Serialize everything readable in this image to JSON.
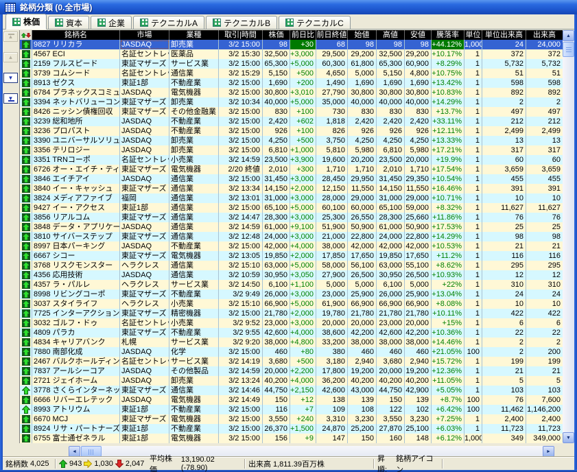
{
  "window": {
    "title": "銘柄分類 (0.全市場)",
    "app_icon": "spreadsheet-grid-icon"
  },
  "tabs": [
    {
      "label": "株価",
      "icon": "table-grid-icon",
      "active": true
    },
    {
      "label": "資本",
      "icon": "table-grid-icon",
      "active": false
    },
    {
      "label": "企業",
      "icon": "table-grid-icon",
      "active": false
    },
    {
      "label": "テクニカルA",
      "icon": "table-grid-icon",
      "active": false
    },
    {
      "label": "テクニカルB",
      "icon": "table-grid-icon",
      "active": false
    },
    {
      "label": "テクニカルC",
      "icon": "table-grid-icon",
      "active": false
    }
  ],
  "sidebar": {
    "buttons": [
      {
        "name": "scroll-to-top-button",
        "enabled": false
      },
      {
        "name": "scroll-up-button",
        "enabled": false
      },
      {
        "name": "scroll-down-button",
        "enabled": true
      },
      {
        "name": "scroll-to-bottom-button",
        "enabled": true
      }
    ]
  },
  "table": {
    "header_icon": "sort-up-down-icon",
    "columns": [
      {
        "key": "name",
        "label": "銘柄名"
      },
      {
        "key": "market",
        "label": "市場"
      },
      {
        "key": "industry",
        "label": "業種"
      },
      {
        "key": "time",
        "label": "取引|時間"
      },
      {
        "key": "price",
        "label": "株価"
      },
      {
        "key": "change",
        "label": "前日比"
      },
      {
        "key": "prev_close",
        "label": "前日終値"
      },
      {
        "key": "open",
        "label": "始値"
      },
      {
        "key": "high",
        "label": "高値"
      },
      {
        "key": "low",
        "label": "安値"
      },
      {
        "key": "pct",
        "label": "騰落率"
      },
      {
        "key": "unit",
        "label": "単位"
      },
      {
        "key": "unit_volume",
        "label": "単位出来高"
      },
      {
        "key": "volume",
        "label": "出来高"
      }
    ],
    "selected_row": 0,
    "rows": [
      [
        "up-tile",
        "9827 リリカラ",
        "JASDAQ",
        "卸売業",
        "3/2 15:00",
        "98",
        "+30",
        "68",
        "98",
        "98",
        "98",
        "+44.12%",
        "1,000",
        "24",
        "24,000"
      ],
      [
        "up-tile",
        "4567 ECI",
        "名証セントレック",
        "医薬品",
        "3/2 15:30",
        "32,500",
        "+3,000",
        "29,500",
        "29,200",
        "32,500",
        "29,200",
        "+10.17%",
        "1",
        "372",
        "372"
      ],
      [
        "up-tile",
        "2159 フルスピード",
        "東証マザーズ",
        "サービス業",
        "3/2 15:00",
        "65,300",
        "+5,000",
        "60,300",
        "61,800",
        "65,300",
        "60,900",
        "+8.29%",
        "1",
        "5,732",
        "5,732"
      ],
      [
        "up-tile",
        "3739 コムシード",
        "名証セントレック",
        "通信業",
        "3/2 15:29",
        "5,150",
        "+500",
        "4,650",
        "5,000",
        "5,150",
        "4,800",
        "+10.75%",
        "1",
        "51",
        "51"
      ],
      [
        "up-tile",
        "8913 ゼクス",
        "東証1部",
        "不動産業",
        "3/2 15:00",
        "1,690",
        "+200",
        "1,490",
        "1,690",
        "1,690",
        "1,690",
        "+13.42%",
        "1",
        "598",
        "598"
      ],
      [
        "up-tile",
        "6784 プラネックスコミュニ",
        "JASDAQ",
        "電気機器",
        "3/2 15:00",
        "30,800",
        "+3,010",
        "27,790",
        "30,800",
        "30,800",
        "30,800",
        "+10.83%",
        "1",
        "892",
        "892"
      ],
      [
        "up-tile",
        "3394 ネットバリューコンポ",
        "東証マザーズ",
        "卸売業",
        "3/2 10:34",
        "40,000",
        "+5,000",
        "35,000",
        "40,000",
        "40,000",
        "40,000",
        "+14.29%",
        "1",
        "2",
        "2"
      ],
      [
        "up-tile",
        "8426 ニッシン債権回収",
        "東証マザーズ",
        "その他金融業",
        "3/2 15:00",
        "830",
        "+100",
        "730",
        "830",
        "830",
        "830",
        "+13.7%",
        "1",
        "497",
        "497"
      ],
      [
        "up-tile",
        "3239 総和地所",
        "JASDAQ",
        "不動産業",
        "3/2 15:00",
        "2,420",
        "+602",
        "1,818",
        "2,420",
        "2,420",
        "2,420",
        "+33.11%",
        "1",
        "212",
        "212"
      ],
      [
        "up-tile",
        "3236 プロパスト",
        "JASDAQ",
        "不動産業",
        "3/2 15:00",
        "926",
        "+100",
        "826",
        "926",
        "926",
        "926",
        "+12.11%",
        "1",
        "2,499",
        "2,499"
      ],
      [
        "up-tile",
        "3390 ユニバーサルソリュー",
        "JASDAQ",
        "卸売業",
        "3/2 15:00",
        "4,250",
        "+500",
        "3,750",
        "4,250",
        "4,250",
        "4,250",
        "+13.33%",
        "1",
        "13",
        "13"
      ],
      [
        "up-tile",
        "3356 テリロジー",
        "JASDAQ",
        "卸売業",
        "3/2 15:00",
        "6,810",
        "+1,000",
        "5,810",
        "5,980",
        "6,810",
        "5,980",
        "+17.21%",
        "1",
        "317",
        "317"
      ],
      [
        "up-tile",
        "3351 TRNコーポ",
        "名証セントレック",
        "小売業",
        "3/2 14:59",
        "23,500",
        "+3,900",
        "19,600",
        "20,200",
        "23,500",
        "20,000",
        "+19.9%",
        "1",
        "60",
        "60"
      ],
      [
        "up-tile",
        "6726 オー・エイチ・ティー",
        "東証マザーズ",
        "電気機器",
        "2/20 終値",
        "2,010",
        "+300",
        "1,710",
        "1,710",
        "2,010",
        "1,710",
        "+17.54%",
        "1",
        "3,659",
        "3,659"
      ],
      [
        "up-tile",
        "3846 エイチアイ",
        "JASDAQ",
        "通信業",
        "3/2 15:00",
        "31,450",
        "+3,000",
        "28,450",
        "29,950",
        "31,450",
        "29,350",
        "+10.54%",
        "1",
        "455",
        "455"
      ],
      [
        "up-tile",
        "3840 イー・キャッシュ",
        "東証マザーズ",
        "通信業",
        "3/2 13:34",
        "14,150",
        "+2,000",
        "12,150",
        "11,550",
        "14,150",
        "11,550",
        "+16.46%",
        "1",
        "391",
        "391"
      ],
      [
        "up-tile",
        "3824 メディアファイブ",
        "福岡",
        "通信業",
        "3/2 13:01",
        "31,000",
        "+3,000",
        "28,000",
        "29,000",
        "31,000",
        "29,000",
        "+10.71%",
        "1",
        "10",
        "10"
      ],
      [
        "up-tile",
        "9427 イー・アクセス",
        "東証1部",
        "通信業",
        "3/2 15:00",
        "65,100",
        "+5,000",
        "60,100",
        "60,000",
        "65,100",
        "59,000",
        "+8.32%",
        "1",
        "11,627",
        "11,627"
      ],
      [
        "up-tile",
        "3856 リアルコム",
        "東証マザーズ",
        "通信業",
        "3/2 14:47",
        "28,300",
        "+3,000",
        "25,300",
        "26,550",
        "28,300",
        "25,660",
        "+11.86%",
        "1",
        "76",
        "76"
      ],
      [
        "up-tile",
        "3848 データ・アプリケーシ",
        "JASDAQ",
        "通信業",
        "3/2 14:59",
        "61,000",
        "+9,100",
        "51,900",
        "50,900",
        "61,000",
        "50,900",
        "+17.53%",
        "1",
        "25",
        "25"
      ],
      [
        "up-tile",
        "3810 サイバーステップ",
        "東証マザーズ",
        "通信業",
        "3/2 12:48",
        "24,000",
        "+3,000",
        "21,000",
        "22,800",
        "24,000",
        "22,800",
        "+14.29%",
        "1",
        "98",
        "98"
      ],
      [
        "up-tile",
        "8997 日本パーキング",
        "JASDAQ",
        "不動産業",
        "3/2 15:00",
        "42,000",
        "+4,000",
        "38,000",
        "42,000",
        "42,000",
        "42,000",
        "+10.53%",
        "1",
        "21",
        "21"
      ],
      [
        "up-tile",
        "6667 シコー",
        "東証マザーズ",
        "電気機器",
        "3/2 13:05",
        "19,850",
        "+2,000",
        "17,850",
        "17,650",
        "19,850",
        "17,650",
        "+11.2%",
        "1",
        "116",
        "116"
      ],
      [
        "up-tile",
        "3768 リスクモンスター",
        "ヘラクレス",
        "通信業",
        "3/2 15:10",
        "63,000",
        "+5,000",
        "58,000",
        "56,100",
        "63,000",
        "55,100",
        "+8.62%",
        "1",
        "295",
        "295"
      ],
      [
        "up-tile",
        "4356 応用技術",
        "JASDAQ",
        "通信業",
        "3/2 10:59",
        "30,950",
        "+3,050",
        "27,900",
        "26,500",
        "30,950",
        "26,500",
        "+10.93%",
        "1",
        "12",
        "12"
      ],
      [
        "up-tile",
        "4357 ラ・パルレ",
        "ヘラクレス",
        "サービス業",
        "3/2 14:50",
        "6,100",
        "+1,100",
        "5,000",
        "5,000",
        "6,100",
        "5,000",
        "+22%",
        "1",
        "310",
        "310"
      ],
      [
        "up-tile",
        "8998 リビングコーポ",
        "東証マザーズ",
        "不動産業",
        "3/2 9:49",
        "26,000",
        "+3,000",
        "23,000",
        "25,900",
        "26,000",
        "25,900",
        "+13.04%",
        "1",
        "24",
        "24"
      ],
      [
        "up-tile",
        "3037 スタイライフ",
        "ヘラクレス",
        "小売業",
        "3/2 15:10",
        "66,900",
        "+5,000",
        "61,900",
        "66,900",
        "66,900",
        "66,900",
        "+8.08%",
        "1",
        "10",
        "10"
      ],
      [
        "up-tile",
        "7725 インターアクション",
        "東証マザーズ",
        "精密機器",
        "3/2 15:00",
        "21,780",
        "+2,000",
        "19,780",
        "21,780",
        "21,780",
        "21,780",
        "+10.11%",
        "1",
        "422",
        "422"
      ],
      [
        "up-tile",
        "3032 ゴルフ・ドゥ",
        "名証セントレック",
        "小売業",
        "3/2 9:52",
        "23,000",
        "+3,000",
        "20,000",
        "20,000",
        "23,000",
        "20,000",
        "+15%",
        "1",
        "6",
        "6"
      ],
      [
        "up-tile",
        "4809 パラカ",
        "東証マザーズ",
        "不動産業",
        "3/2 9:55",
        "42,600",
        "+4,000",
        "38,600",
        "42,200",
        "42,600",
        "42,200",
        "+10.36%",
        "1",
        "22",
        "22"
      ],
      [
        "up-tile",
        "4834 キャリアバンク",
        "札幌",
        "サービス業",
        "3/2 9:20",
        "38,000",
        "+4,800",
        "33,200",
        "38,000",
        "38,000",
        "38,000",
        "+14.46%",
        "1",
        "2",
        "2"
      ],
      [
        "up-tile",
        "7880 南部化成",
        "JASDAQ",
        "化学",
        "3/2 15:00",
        "460",
        "+80",
        "380",
        "460",
        "460",
        "460",
        "+21.05%",
        "100",
        "2",
        "200"
      ],
      [
        "up-tile",
        "2467 バルクホールディング",
        "名証セントレック",
        "サービス業",
        "3/2 14:19",
        "3,680",
        "+500",
        "3,180",
        "2,940",
        "3,680",
        "2,940",
        "+15.72%",
        "1",
        "199",
        "199"
      ],
      [
        "up-tile",
        "7837 アールシーコア",
        "JASDAQ",
        "その他製品",
        "3/2 14:59",
        "20,000",
        "+2,200",
        "17,800",
        "19,200",
        "20,000",
        "19,200",
        "+12.36%",
        "1",
        "21",
        "21"
      ],
      [
        "up-tile",
        "2721 ジェイホーム",
        "JASDAQ",
        "卸売業",
        "3/2 13:24",
        "40,200",
        "+4,000",
        "36,200",
        "40,200",
        "40,200",
        "40,200",
        "+11.05%",
        "1",
        "5",
        "5"
      ],
      [
        "up-plain",
        "3778 さくらインターネット",
        "東証マザーズ",
        "通信業",
        "3/2 14:46",
        "44,750",
        "+2,150",
        "42,600",
        "43,000",
        "44,750",
        "42,900",
        "+5.05%",
        "1",
        "103",
        "103"
      ],
      [
        "up-tile",
        "6666 リバーエレテック",
        "JASDAQ",
        "電気機器",
        "3/2 14:49",
        "150",
        "+12",
        "138",
        "139",
        "150",
        "139",
        "+8.7%",
        "100",
        "76",
        "7,600"
      ],
      [
        "up-plain",
        "8993 アトリウム",
        "東証1部",
        "不動産業",
        "3/2 15:00",
        "116",
        "+7",
        "109",
        "108",
        "122",
        "102",
        "+6.42%",
        "100",
        "11,462",
        "1,146,200"
      ],
      [
        "up-tile",
        "6670 MCJ",
        "東証マザーズ",
        "電気機器",
        "3/2 15:00",
        "3,550",
        "+240",
        "3,310",
        "3,230",
        "3,550",
        "3,230",
        "+7.25%",
        "1",
        "2,400",
        "2,400"
      ],
      [
        "up-tile",
        "8924 リサ・パートナーズ",
        "東証1部",
        "不動産業",
        "3/2 15:00",
        "26,370",
        "+1,500",
        "24,870",
        "25,200",
        "27,870",
        "25,100",
        "+6.03%",
        "1",
        "11,723",
        "11,723"
      ],
      [
        "up-tile",
        "6755 富士通ゼネラル",
        "東証1部",
        "電気機器",
        "3/2 15:00",
        "156",
        "+9",
        "147",
        "150",
        "160",
        "148",
        "+6.12%",
        "1,000",
        "349",
        "349,000"
      ]
    ]
  },
  "status_bar": {
    "stock_count_label": "銘柄数",
    "stock_count": "4,025",
    "up_icon": "up-arrow-green-icon",
    "up_count": "943",
    "flat_icon": "right-arrow-yellow-icon",
    "flat_count": "1,030",
    "down_icon": "down-arrow-red-icon",
    "down_count": "2,047",
    "avg_label": "平均株価",
    "avg_value": "13,190.02 (-78.90)",
    "volume_label": "出来高",
    "volume_value": "1,811.39百万株",
    "sort_label": "昇順:",
    "sort_value": "銘柄アイコン"
  },
  "colors": {
    "selection_bg": "#3563d2",
    "positive_text": "#008000",
    "positive_cell_bg": "#007a00",
    "row_alt_yellow": "#fff8d6",
    "row_alt_cyan": "#d6f8ff",
    "header_bg": "#000000",
    "up_arrow_green": "#25d025",
    "flat_arrow_yellow": "#f0e020",
    "down_arrow_red": "#e02020"
  }
}
